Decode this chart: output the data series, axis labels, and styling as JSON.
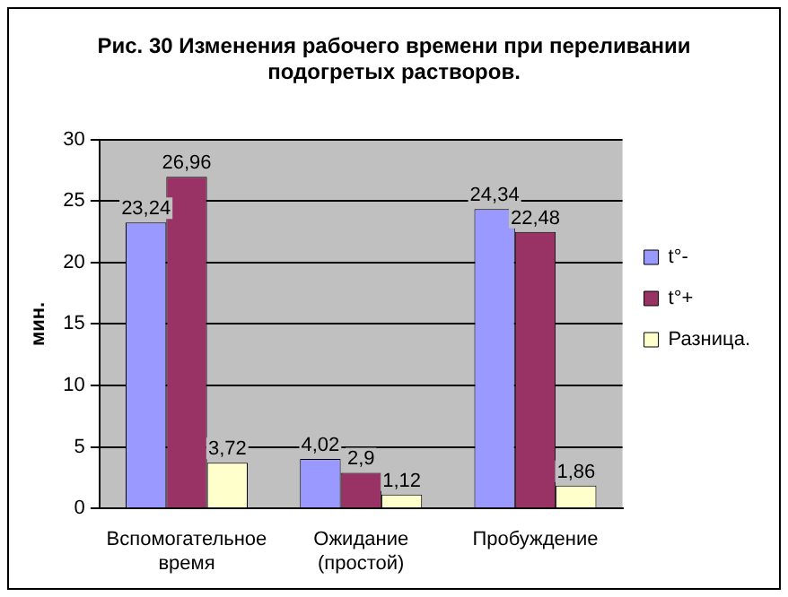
{
  "chart_data": {
    "type": "bar",
    "title": "Рис. 30 Изменения рабочего времени при переливании подогретых растворов.",
    "ylabel": "мин.",
    "categories": [
      "Вспомогательное время",
      "Ожидание (простой)",
      "Пробуждение"
    ],
    "series": [
      {
        "name": "t°-",
        "color": "#9999ff",
        "values": [
          23.24,
          4.02,
          24.34
        ],
        "value_labels": [
          "23,24",
          "4,02",
          "24,34"
        ]
      },
      {
        "name": "t°+",
        "color": "#993366",
        "values": [
          26.96,
          2.9,
          22.48
        ],
        "value_labels": [
          "26,96",
          "2,9",
          "22,48"
        ]
      },
      {
        "name": "Разница.",
        "color": "#ffffcc",
        "values": [
          3.72,
          1.12,
          1.86
        ],
        "value_labels": [
          "3,72",
          "1,12",
          "1,86"
        ]
      }
    ],
    "ylim": [
      0,
      30
    ],
    "yticks": [
      0,
      5,
      10,
      15,
      20,
      25,
      30
    ],
    "grid": "y",
    "legend": "right"
  }
}
